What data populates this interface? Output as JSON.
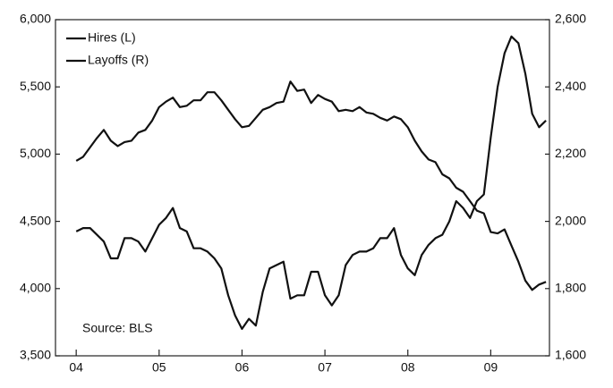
{
  "chart_data": {
    "type": "line",
    "x": [
      0,
      1,
      2,
      3,
      4,
      5,
      6,
      7,
      8,
      9,
      10,
      11,
      12,
      13,
      14,
      15,
      16,
      17,
      18,
      19,
      20,
      21,
      22,
      23,
      24,
      25,
      26,
      27,
      28,
      29,
      30,
      31,
      32,
      33,
      34,
      35,
      36,
      37,
      38,
      39,
      40,
      41,
      42,
      43,
      44,
      45,
      46,
      47,
      48,
      49,
      50,
      51,
      52,
      53,
      54,
      55,
      56,
      57,
      58,
      59,
      60,
      61,
      62,
      63,
      64,
      65,
      66,
      67,
      68
    ],
    "xlim": [
      -3,
      68.5
    ],
    "xticks": [
      {
        "value": 0,
        "label": "04"
      },
      {
        "value": 12,
        "label": "05"
      },
      {
        "value": 24,
        "label": "06"
      },
      {
        "value": 36,
        "label": "07"
      },
      {
        "value": 48,
        "label": "08"
      },
      {
        "value": 60,
        "label": "09"
      }
    ],
    "ylim": [
      3500,
      6000
    ],
    "yticks": [
      {
        "value": 3500,
        "label": "3,500"
      },
      {
        "value": 4000,
        "label": "4,000"
      },
      {
        "value": 4500,
        "label": "4,500"
      },
      {
        "value": 5000,
        "label": "5,000"
      },
      {
        "value": 5500,
        "label": "5,500"
      },
      {
        "value": 6000,
        "label": "6,000"
      }
    ],
    "y2lim": [
      1600,
      2600
    ],
    "y2ticks": [
      {
        "value": 1600,
        "label": "1,600"
      },
      {
        "value": 1800,
        "label": "1,800"
      },
      {
        "value": 2000,
        "label": "2,000"
      },
      {
        "value": 2200,
        "label": "2,200"
      },
      {
        "value": 2400,
        "label": "2,400"
      },
      {
        "value": 2600,
        "label": "2,600"
      }
    ],
    "legend": "upper left",
    "annotation": "Source: BLS",
    "series": [
      {
        "name": "Hires (L)",
        "color": "#111111",
        "values": [
          4950,
          4980,
          5050,
          5120,
          5180,
          5100,
          5060,
          5090,
          5100,
          5160,
          5180,
          5250,
          5350,
          5390,
          5420,
          5350,
          5360,
          5400,
          5400,
          5460,
          5460,
          5400,
          5330,
          5260,
          5200,
          5210,
          5270,
          5330,
          5350,
          5380,
          5390,
          5540,
          5470,
          5480,
          5380,
          5440,
          5410,
          5390,
          5320,
          5330,
          5320,
          5350,
          5310,
          5300,
          5270,
          5250,
          5280,
          5260,
          5200,
          5100,
          5020,
          4960,
          4940,
          4850,
          4820,
          4750,
          4720,
          4650,
          4580,
          4560,
          4420,
          4410,
          4440,
          4320,
          4200,
          4060,
          3990,
          4030,
          4050
        ]
      },
      {
        "name": "Layoffs (R)",
        "color": "#111111",
        "axis": "y2",
        "values": [
          1970,
          1980,
          1980,
          1960,
          1940,
          1890,
          1890,
          1950,
          1950,
          1940,
          1910,
          1950,
          1990,
          2010,
          2040,
          1980,
          1970,
          1920,
          1920,
          1910,
          1890,
          1860,
          1780,
          1720,
          1680,
          1710,
          1690,
          1790,
          1860,
          1870,
          1880,
          1770,
          1780,
          1780,
          1850,
          1850,
          1780,
          1750,
          1780,
          1870,
          1900,
          1910,
          1910,
          1920,
          1950,
          1950,
          1980,
          1900,
          1860,
          1840,
          1900,
          1930,
          1950,
          1960,
          2000,
          2060,
          2040,
          2010,
          2060,
          2080,
          2250,
          2400,
          2500,
          2550,
          2530,
          2440,
          2320,
          2280,
          2300
        ]
      }
    ]
  }
}
